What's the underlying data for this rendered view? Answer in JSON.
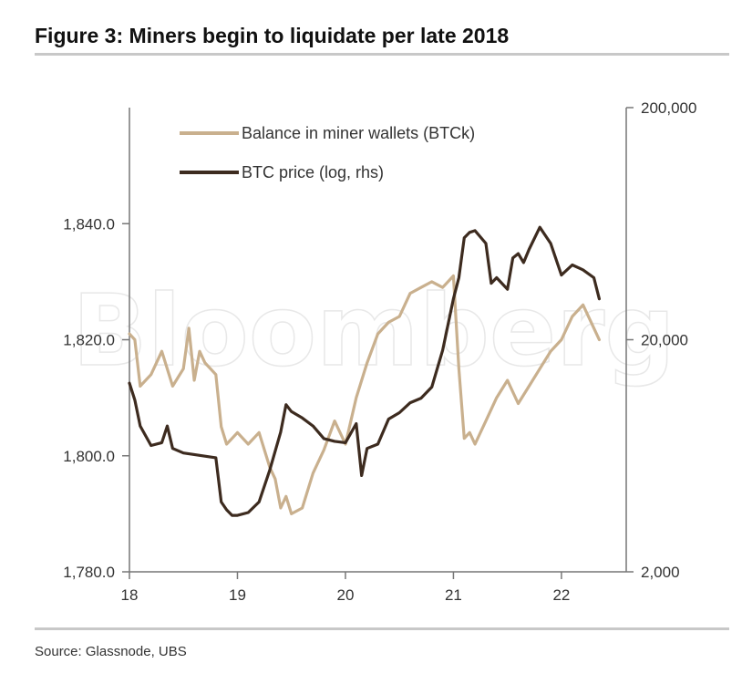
{
  "title": "Figure 3: Miners begin to liquidate per late 2018",
  "source": "Source: Glassnode, UBS",
  "watermark": "Bloomberg",
  "colors": {
    "balance": "#c9b08e",
    "price": "#3d2b1f",
    "axis": "#777777",
    "rule": "#c8c8c8"
  },
  "chart_data": {
    "type": "line",
    "title": "Figure 3: Miners begin to liquidate per late 2018",
    "xlabel": "",
    "ylabel": "",
    "y2label": "",
    "x_ticks": [
      "18",
      "19",
      "20",
      "21",
      "22"
    ],
    "x_range": [
      18,
      22.6
    ],
    "y_ticks": [
      "1,840.0",
      "1,820.0",
      "1,800.0",
      "1,780.0"
    ],
    "y_tick_values": [
      1840,
      1820,
      1800,
      1780
    ],
    "ylim": [
      1780,
      1860
    ],
    "y2_ticks": [
      "200,000",
      "20,000",
      "2,000"
    ],
    "y2_tick_values": [
      200000,
      20000,
      2000
    ],
    "y2lim": [
      2000,
      200000
    ],
    "y2_scale": "log",
    "legend_position": "top-left",
    "series": [
      {
        "name": "Balance in miner wallets (BTCk)",
        "axis": "left",
        "x": [
          18.0,
          18.05,
          18.1,
          18.2,
          18.3,
          18.4,
          18.5,
          18.55,
          18.6,
          18.65,
          18.7,
          18.8,
          18.85,
          18.9,
          18.95,
          19.0,
          19.1,
          19.2,
          19.3,
          19.35,
          19.4,
          19.45,
          19.5,
          19.6,
          19.7,
          19.8,
          19.9,
          20.0,
          20.1,
          20.2,
          20.3,
          20.4,
          20.5,
          20.6,
          20.7,
          20.8,
          20.9,
          21.0,
          21.05,
          21.1,
          21.15,
          21.2,
          21.3,
          21.4,
          21.5,
          21.6,
          21.7,
          21.8,
          21.9,
          22.0,
          22.1,
          22.2,
          22.3,
          22.35
        ],
        "values": [
          1821,
          1820,
          1812,
          1814,
          1818,
          1812,
          1815,
          1822,
          1813,
          1818,
          1816,
          1814,
          1805,
          1802,
          1803,
          1804,
          1802,
          1804,
          1798,
          1796,
          1791,
          1793,
          1790,
          1791,
          1797,
          1801,
          1806,
          1802,
          1810,
          1816,
          1821,
          1823,
          1824,
          1828,
          1829,
          1830,
          1829,
          1831,
          1815,
          1803,
          1804,
          1802,
          1806,
          1810,
          1813,
          1809,
          1812,
          1815,
          1818,
          1820,
          1824,
          1826,
          1822,
          1820
        ]
      },
      {
        "name": "BTC price (log, rhs)",
        "axis": "right",
        "x": [
          18.0,
          18.05,
          18.1,
          18.2,
          18.3,
          18.35,
          18.4,
          18.5,
          18.6,
          18.7,
          18.8,
          18.85,
          18.9,
          18.95,
          19.0,
          19.1,
          19.2,
          19.3,
          19.4,
          19.45,
          19.5,
          19.6,
          19.7,
          19.8,
          19.9,
          20.0,
          20.1,
          20.15,
          20.2,
          20.3,
          20.4,
          20.5,
          20.6,
          20.7,
          20.8,
          20.9,
          21.0,
          21.05,
          21.1,
          21.15,
          21.2,
          21.3,
          21.35,
          21.4,
          21.5,
          21.55,
          21.6,
          21.65,
          21.7,
          21.8,
          21.9,
          22.0,
          22.1,
          22.2,
          22.3,
          22.35
        ],
        "values": [
          13000,
          11000,
          8500,
          7000,
          7200,
          8500,
          6800,
          6500,
          6400,
          6300,
          6200,
          4000,
          3700,
          3500,
          3500,
          3600,
          4000,
          5500,
          8000,
          10500,
          9800,
          9200,
          8500,
          7500,
          7300,
          7200,
          8700,
          5200,
          6800,
          7100,
          9100,
          9700,
          10700,
          11200,
          12500,
          18000,
          30000,
          37000,
          55000,
          58000,
          59000,
          52000,
          35000,
          37000,
          33000,
          45000,
          47000,
          43000,
          49000,
          61000,
          52000,
          38000,
          42000,
          40000,
          37000,
          30000
        ]
      }
    ]
  }
}
